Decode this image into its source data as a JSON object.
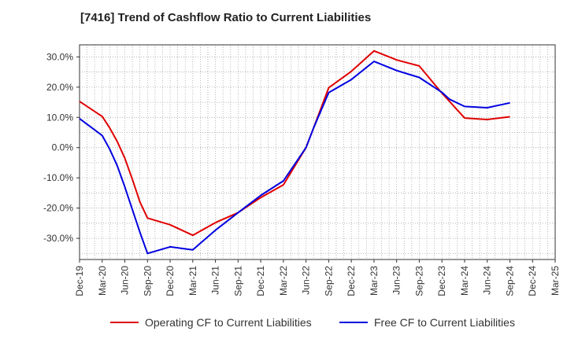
{
  "chart_data": {
    "type": "line",
    "title": "[7416]  Trend of Cashflow Ratio to Current Liabilities",
    "xlabel": "",
    "ylabel": "",
    "x_tick_labels": [
      "Dec-19",
      "Mar-20",
      "Jun-20",
      "Sep-20",
      "Dec-20",
      "Mar-21",
      "Jun-21",
      "Sep-21",
      "Dec-21",
      "Mar-22",
      "Jun-22",
      "Sep-22",
      "Dec-22",
      "Mar-23",
      "Jun-23",
      "Sep-23",
      "Dec-23",
      "Mar-24",
      "Jun-24",
      "Sep-24",
      "Dec-24",
      "Mar-25"
    ],
    "y_tick_labels": [
      "-30.0%",
      "-20.0%",
      "-10.0%",
      "0.0%",
      "10.0%",
      "20.0%",
      "30.0%"
    ],
    "y_ticks": [
      -30,
      -20,
      -10,
      0,
      10,
      20,
      30
    ],
    "ylim": [
      -37,
      34
    ],
    "grid": true,
    "legend_position": "bottom",
    "series": [
      {
        "name": "Operating CF to Current Liabilities",
        "color": "#e00000",
        "points": [
          {
            "x": "Dec-19",
            "y": 15.3
          },
          {
            "x": "Mar-20",
            "y": 10.3
          },
          {
            "x": "Apr-20",
            "y": 6.5
          },
          {
            "x": "May-20",
            "y": 2.0
          },
          {
            "x": "Jun-20",
            "y": -3.5
          },
          {
            "x": "Jul-20",
            "y": -10.5
          },
          {
            "x": "Aug-20",
            "y": -18.0
          },
          {
            "x": "Sep-20",
            "y": -23.3
          },
          {
            "x": "Dec-20",
            "y": -25.5
          },
          {
            "x": "Mar-21",
            "y": -29.0
          },
          {
            "x": "Jun-21",
            "y": -24.8
          },
          {
            "x": "Sep-21",
            "y": -21.5
          },
          {
            "x": "Dec-21",
            "y": -16.5
          },
          {
            "x": "Mar-22",
            "y": -12.3
          },
          {
            "x": "Jun-22",
            "y": 0.0
          },
          {
            "x": "Jul-22",
            "y": 6.5
          },
          {
            "x": "Sep-22",
            "y": 19.8
          },
          {
            "x": "Dec-22",
            "y": 25.2
          },
          {
            "x": "Mar-23",
            "y": 32.0
          },
          {
            "x": "Jun-23",
            "y": 29.0
          },
          {
            "x": "Sep-23",
            "y": 27.0
          },
          {
            "x": "Dec-23",
            "y": 18.0
          },
          {
            "x": "Jan-24",
            "y": 15.3
          },
          {
            "x": "Mar-24",
            "y": 9.8
          },
          {
            "x": "Jun-24",
            "y": 9.3
          },
          {
            "x": "Sep-24",
            "y": 10.2
          }
        ]
      },
      {
        "name": "Free CF to Current Liabilities",
        "color": "#0000e0",
        "points": [
          {
            "x": "Dec-19",
            "y": 9.6
          },
          {
            "x": "Mar-20",
            "y": 4.0
          },
          {
            "x": "Apr-20",
            "y": -0.5
          },
          {
            "x": "May-20",
            "y": -6.0
          },
          {
            "x": "Jun-20",
            "y": -13.0
          },
          {
            "x": "Jul-20",
            "y": -20.5
          },
          {
            "x": "Aug-20",
            "y": -28.0
          },
          {
            "x": "Sep-20",
            "y": -35.0
          },
          {
            "x": "Dec-20",
            "y": -32.8
          },
          {
            "x": "Mar-21",
            "y": -33.8
          },
          {
            "x": "Jun-21",
            "y": -27.3
          },
          {
            "x": "Sep-21",
            "y": -21.5
          },
          {
            "x": "Dec-21",
            "y": -15.8
          },
          {
            "x": "Mar-22",
            "y": -11.0
          },
          {
            "x": "Jun-22",
            "y": 0.0
          },
          {
            "x": "Jul-22",
            "y": 6.5
          },
          {
            "x": "Sep-22",
            "y": 18.2
          },
          {
            "x": "Dec-22",
            "y": 22.5
          },
          {
            "x": "Mar-23",
            "y": 28.5
          },
          {
            "x": "Jun-23",
            "y": 25.5
          },
          {
            "x": "Sep-23",
            "y": 23.2
          },
          {
            "x": "Dec-23",
            "y": 18.3
          },
          {
            "x": "Jan-24",
            "y": 16.0
          },
          {
            "x": "Mar-24",
            "y": 13.6
          },
          {
            "x": "Jun-24",
            "y": 13.2
          },
          {
            "x": "Sep-24",
            "y": 14.8
          }
        ]
      }
    ]
  }
}
